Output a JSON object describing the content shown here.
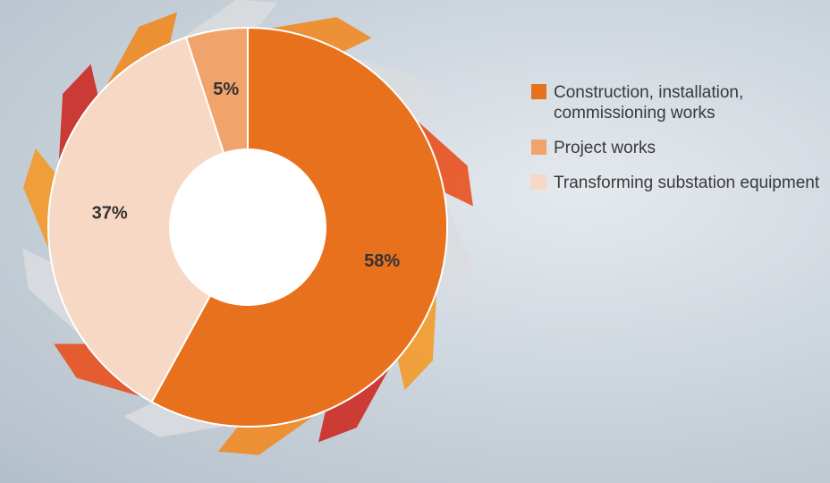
{
  "chart_data": {
    "type": "donut",
    "categories": [
      "Construction, installation, commissioning works",
      "Project works",
      "Transforming substation equipment"
    ],
    "values": [
      58,
      5,
      37
    ],
    "value_labels": [
      "58%",
      "5%",
      "37%"
    ],
    "colors": [
      "#e8711e",
      "#f0a36a",
      "#f6d8c4"
    ],
    "legend": "right"
  }
}
